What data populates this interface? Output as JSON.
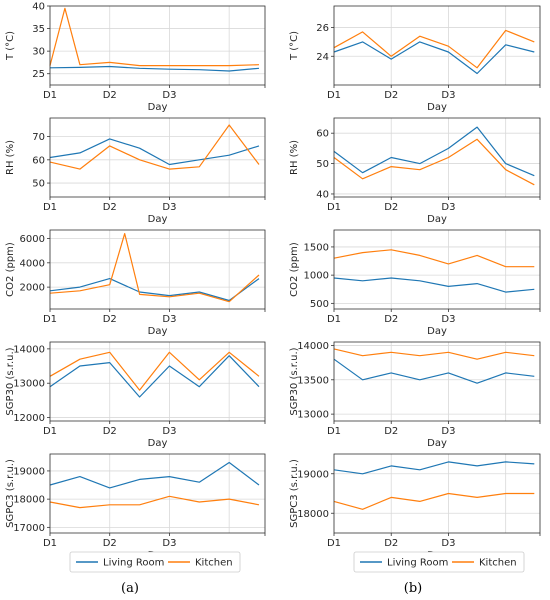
{
  "figure": {
    "panel_labels": [
      "(a)",
      "(b)"
    ],
    "legend": [
      {
        "label": "Living Room",
        "color": "#1f77b4"
      },
      {
        "label": "Kitchen",
        "color": "#ff7f0e"
      }
    ]
  },
  "chart_data": [
    {
      "type": "line",
      "panel": "a",
      "row": 0,
      "xlabel": "Day",
      "ylabel": "T (°C)",
      "x_ticks": [
        "D1",
        "D2",
        "D3"
      ],
      "x_range": [
        0,
        3.6
      ],
      "ylim": [
        22.5,
        40
      ],
      "y_ticks": [
        25,
        30,
        35,
        40
      ],
      "series": [
        {
          "name": "Living Room",
          "x": [
            0,
            0.5,
            1,
            1.5,
            2,
            2.5,
            3,
            3.5
          ],
          "values": [
            26.3,
            26.4,
            26.6,
            26.2,
            26,
            25.9,
            25.6,
            26.2
          ]
        },
        {
          "name": "Kitchen",
          "x": [
            0,
            0.25,
            0.5,
            1,
            1.5,
            2,
            2.5,
            3,
            3.5
          ],
          "values": [
            26.8,
            39.5,
            27,
            27.5,
            26.8,
            26.8,
            26.8,
            26.8,
            27
          ]
        }
      ]
    },
    {
      "type": "line",
      "panel": "a",
      "row": 1,
      "xlabel": "Day",
      "ylabel": "RH (%)",
      "x_ticks": [
        "D1",
        "D2",
        "D3"
      ],
      "x_range": [
        0,
        3.6
      ],
      "ylim": [
        44,
        78
      ],
      "y_ticks": [
        50,
        60,
        70
      ],
      "series": [
        {
          "name": "Living Room",
          "x": [
            0,
            0.5,
            1,
            1.5,
            2,
            2.5,
            3,
            3.5
          ],
          "values": [
            61,
            63,
            69,
            65,
            58,
            60,
            62,
            66
          ]
        },
        {
          "name": "Kitchen",
          "x": [
            0,
            0.5,
            1,
            1.5,
            2,
            2.5,
            3,
            3.5
          ],
          "values": [
            59,
            56,
            66,
            60,
            56,
            57,
            75,
            58
          ]
        }
      ]
    },
    {
      "type": "line",
      "panel": "a",
      "row": 2,
      "xlabel": "Day",
      "ylabel": "CO2 (ppm)",
      "x_ticks": [
        "D1",
        "D2",
        "D3"
      ],
      "x_range": [
        0,
        3.6
      ],
      "ylim": [
        200,
        6700
      ],
      "y_ticks": [
        2000,
        4000,
        6000
      ],
      "series": [
        {
          "name": "Living Room",
          "x": [
            0,
            0.5,
            1,
            1.5,
            2,
            2.5,
            3,
            3.5
          ],
          "values": [
            1700,
            2000,
            2700,
            1600,
            1300,
            1600,
            900,
            2700
          ]
        },
        {
          "name": "Kitchen",
          "x": [
            0,
            0.5,
            1,
            1.25,
            1.5,
            2,
            2.5,
            3,
            3.5
          ],
          "values": [
            1500,
            1700,
            2200,
            6400,
            1400,
            1200,
            1500,
            800,
            3000
          ]
        }
      ]
    },
    {
      "type": "line",
      "panel": "a",
      "row": 3,
      "xlabel": "Day",
      "ylabel": "SGP30 (s.r.u.)",
      "x_ticks": [
        "D1",
        "D2",
        "D3"
      ],
      "x_range": [
        0,
        3.6
      ],
      "ylim": [
        11900,
        14200
      ],
      "y_ticks": [
        12000,
        13000,
        14000
      ],
      "series": [
        {
          "name": "Living Room",
          "x": [
            0,
            0.5,
            1,
            1.5,
            2,
            2.5,
            3,
            3.5
          ],
          "values": [
            12900,
            13500,
            13600,
            12600,
            13500,
            12900,
            13800,
            12900
          ]
        },
        {
          "name": "Kitchen",
          "x": [
            0,
            0.5,
            1,
            1.5,
            2,
            2.5,
            3,
            3.5
          ],
          "values": [
            13200,
            13700,
            13900,
            12800,
            13900,
            13100,
            13900,
            13200
          ]
        }
      ]
    },
    {
      "type": "line",
      "panel": "a",
      "row": 4,
      "xlabel": "Day",
      "ylabel": "SGPC3 (s.r.u.)",
      "x_ticks": [
        "D1",
        "D2",
        "D3"
      ],
      "x_range": [
        0,
        3.6
      ],
      "ylim": [
        16800,
        19600
      ],
      "y_ticks": [
        17000,
        18000,
        19000
      ],
      "series": [
        {
          "name": "Living Room",
          "x": [
            0,
            0.5,
            1,
            1.5,
            2,
            2.5,
            3,
            3.5
          ],
          "values": [
            18500,
            18800,
            18400,
            18700,
            18800,
            18600,
            19300,
            18500
          ]
        },
        {
          "name": "Kitchen",
          "x": [
            0,
            0.5,
            1,
            1.5,
            2,
            2.5,
            3,
            3.5
          ],
          "values": [
            17900,
            17700,
            17800,
            17800,
            18100,
            17900,
            18000,
            17800
          ]
        }
      ]
    },
    {
      "type": "line",
      "panel": "b",
      "row": 0,
      "xlabel": "Day",
      "ylabel": "T (°C)",
      "x_ticks": [
        "D1",
        "D2",
        "D3"
      ],
      "x_range": [
        0,
        3.6
      ],
      "ylim": [
        22,
        27.5
      ],
      "y_ticks": [
        24,
        26
      ],
      "series": [
        {
          "name": "Living Room",
          "x": [
            0,
            0.5,
            1,
            1.5,
            2,
            2.5,
            3,
            3.5
          ],
          "values": [
            24.3,
            25,
            23.8,
            25,
            24.3,
            22.8,
            24.8,
            24.3
          ]
        },
        {
          "name": "Kitchen",
          "x": [
            0,
            0.5,
            1,
            1.5,
            2,
            2.5,
            3,
            3.5
          ],
          "values": [
            24.6,
            25.7,
            24,
            25.4,
            24.7,
            23.2,
            25.8,
            25
          ]
        }
      ]
    },
    {
      "type": "line",
      "panel": "b",
      "row": 1,
      "xlabel": "Day",
      "ylabel": "RH (%)",
      "x_ticks": [
        "D1",
        "D2",
        "D3"
      ],
      "x_range": [
        0,
        3.6
      ],
      "ylim": [
        39,
        65
      ],
      "y_ticks": [
        40,
        50,
        60
      ],
      "series": [
        {
          "name": "Living Room",
          "x": [
            0,
            0.5,
            1,
            1.5,
            2,
            2.5,
            3,
            3.5
          ],
          "values": [
            54,
            47,
            52,
            50,
            55,
            62,
            50,
            46
          ]
        },
        {
          "name": "Kitchen",
          "x": [
            0,
            0.5,
            1,
            1.5,
            2,
            2.5,
            3,
            3.5
          ],
          "values": [
            52,
            45,
            49,
            48,
            52,
            58,
            48,
            43
          ]
        }
      ]
    },
    {
      "type": "line",
      "panel": "b",
      "row": 2,
      "xlabel": "Day",
      "ylabel": "CO2 (ppm)",
      "x_ticks": [
        "D1",
        "D2",
        "D3"
      ],
      "x_range": [
        0,
        3.6
      ],
      "ylim": [
        400,
        1800
      ],
      "y_ticks": [
        500,
        1000,
        1500
      ],
      "series": [
        {
          "name": "Living Room",
          "x": [
            0,
            0.5,
            1,
            1.5,
            2,
            2.5,
            3,
            3.5
          ],
          "values": [
            950,
            900,
            950,
            900,
            800,
            850,
            700,
            750
          ]
        },
        {
          "name": "Kitchen",
          "x": [
            0,
            0.5,
            1,
            1.5,
            2,
            2.5,
            3,
            3.5
          ],
          "values": [
            1300,
            1400,
            1450,
            1350,
            1200,
            1350,
            1150,
            1150
          ]
        }
      ]
    },
    {
      "type": "line",
      "panel": "b",
      "row": 3,
      "xlabel": "Day",
      "ylabel": "SGP30 (s.r.u.)",
      "x_ticks": [
        "D1",
        "D2",
        "D3"
      ],
      "x_range": [
        0,
        3.6
      ],
      "ylim": [
        12900,
        14050
      ],
      "y_ticks": [
        13000,
        13500,
        14000
      ],
      "series": [
        {
          "name": "Living Room",
          "x": [
            0,
            0.5,
            1,
            1.5,
            2,
            2.5,
            3,
            3.5
          ],
          "values": [
            13800,
            13500,
            13600,
            13500,
            13600,
            13450,
            13600,
            13550
          ]
        },
        {
          "name": "Kitchen",
          "x": [
            0,
            0.5,
            1,
            1.5,
            2,
            2.5,
            3,
            3.5
          ],
          "values": [
            13950,
            13850,
            13900,
            13850,
            13900,
            13800,
            13900,
            13850
          ]
        }
      ]
    },
    {
      "type": "line",
      "panel": "b",
      "row": 4,
      "xlabel": "Day",
      "ylabel": "SGPC3 (s.r.u.)",
      "x_ticks": [
        "D1",
        "D2",
        "D3"
      ],
      "x_range": [
        0,
        3.6
      ],
      "ylim": [
        17500,
        19500
      ],
      "y_ticks": [
        18000,
        19000
      ],
      "series": [
        {
          "name": "Living Room",
          "x": [
            0,
            0.5,
            1,
            1.5,
            2,
            2.5,
            3,
            3.5
          ],
          "values": [
            19100,
            19000,
            19200,
            19100,
            19300,
            19200,
            19300,
            19250
          ]
        },
        {
          "name": "Kitchen",
          "x": [
            0,
            0.5,
            1,
            1.5,
            2,
            2.5,
            3,
            3.5
          ],
          "values": [
            18300,
            18100,
            18400,
            18300,
            18500,
            18400,
            18500,
            18500
          ]
        }
      ]
    }
  ]
}
